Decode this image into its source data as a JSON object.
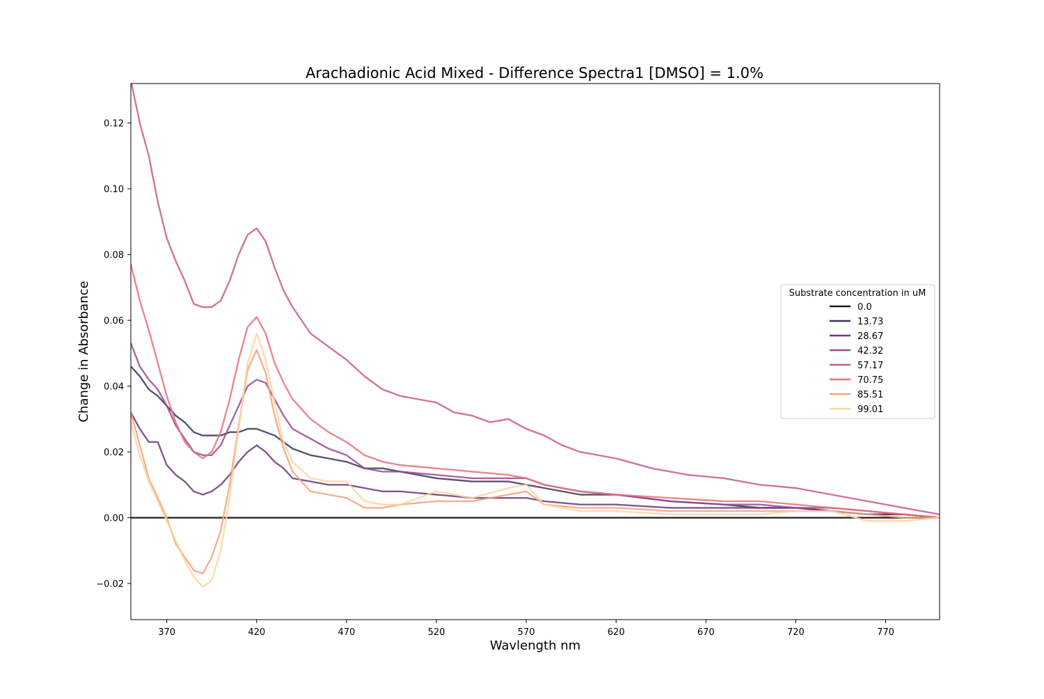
{
  "chart_data": {
    "type": "line",
    "title": "Arachadionic Acid Mixed - Difference Spectra1 [DMSO] = 1.0%",
    "xlabel": "Wavlength nm",
    "ylabel": "Change in Absorbance",
    "xlim": [
      350,
      800
    ],
    "ylim": [
      -0.031,
      0.132
    ],
    "xticks": [
      370,
      420,
      470,
      520,
      570,
      620,
      670,
      720,
      770
    ],
    "yticks": [
      -0.02,
      0.0,
      0.02,
      0.04,
      0.06,
      0.08,
      0.1,
      0.12
    ],
    "ytick_labels": [
      "−0.02",
      "0.00",
      "0.02",
      "0.04",
      "0.06",
      "0.08",
      "0.10",
      "0.12"
    ],
    "grid": false,
    "legend": {
      "title": "Substrate concentration in uM",
      "placement": "center-right"
    },
    "series": [
      {
        "name": "0.0",
        "color": "#1b1b1b",
        "x": [
          350,
          800
        ],
        "values": [
          0.0,
          0.0
        ]
      },
      {
        "name": "13.73",
        "color": "#3b3557",
        "x": [
          350,
          355,
          360,
          365,
          370,
          375,
          380,
          385,
          390,
          395,
          400,
          405,
          410,
          415,
          420,
          425,
          430,
          435,
          440,
          445,
          450,
          460,
          470,
          480,
          490,
          500,
          520,
          540,
          560,
          570,
          580,
          600,
          620,
          650,
          680,
          700,
          720,
          740,
          760,
          780,
          800
        ],
        "values": [
          0.046,
          0.043,
          0.039,
          0.037,
          0.034,
          0.031,
          0.029,
          0.026,
          0.025,
          0.025,
          0.025,
          0.026,
          0.026,
          0.027,
          0.027,
          0.026,
          0.025,
          0.023,
          0.021,
          0.02,
          0.019,
          0.018,
          0.017,
          0.015,
          0.015,
          0.014,
          0.012,
          0.011,
          0.011,
          0.01,
          0.009,
          0.007,
          0.007,
          0.005,
          0.004,
          0.003,
          0.003,
          0.002,
          0.001,
          0.001,
          0.0
        ]
      },
      {
        "name": "28.67",
        "color": "#6b3a7a",
        "x": [
          350,
          355,
          360,
          365,
          370,
          375,
          380,
          385,
          390,
          395,
          400,
          405,
          410,
          415,
          420,
          425,
          430,
          435,
          440,
          450,
          460,
          470,
          480,
          490,
          500,
          520,
          540,
          560,
          570,
          580,
          600,
          620,
          650,
          680,
          700,
          720,
          740,
          760,
          780,
          800
        ],
        "values": [
          0.032,
          0.027,
          0.023,
          0.023,
          0.016,
          0.013,
          0.011,
          0.008,
          0.007,
          0.008,
          0.01,
          0.013,
          0.017,
          0.02,
          0.022,
          0.02,
          0.017,
          0.015,
          0.012,
          0.011,
          0.01,
          0.01,
          0.009,
          0.008,
          0.008,
          0.007,
          0.006,
          0.006,
          0.006,
          0.005,
          0.004,
          0.004,
          0.003,
          0.003,
          0.003,
          0.003,
          0.002,
          0.001,
          0.001,
          0.0
        ]
      },
      {
        "name": "42.32",
        "color": "#9a4a8f",
        "x": [
          350,
          355,
          360,
          365,
          370,
          375,
          380,
          385,
          390,
          395,
          400,
          405,
          410,
          415,
          420,
          425,
          430,
          435,
          440,
          450,
          460,
          470,
          480,
          490,
          500,
          520,
          540,
          560,
          570,
          580,
          600,
          620,
          650,
          680,
          700,
          720,
          740,
          760,
          780,
          800
        ],
        "values": [
          0.053,
          0.046,
          0.042,
          0.039,
          0.034,
          0.028,
          0.024,
          0.02,
          0.019,
          0.019,
          0.022,
          0.028,
          0.034,
          0.04,
          0.042,
          0.041,
          0.036,
          0.031,
          0.027,
          0.024,
          0.021,
          0.019,
          0.015,
          0.014,
          0.014,
          0.013,
          0.012,
          0.012,
          0.012,
          0.01,
          0.008,
          0.007,
          0.005,
          0.004,
          0.004,
          0.003,
          0.003,
          0.002,
          0.001,
          0.0
        ]
      },
      {
        "name": "57.17",
        "color": "#c65a8d",
        "x": [
          350,
          355,
          360,
          365,
          370,
          375,
          380,
          385,
          390,
          395,
          400,
          405,
          410,
          415,
          420,
          425,
          430,
          435,
          440,
          450,
          460,
          470,
          480,
          490,
          500,
          510,
          520,
          530,
          540,
          550,
          560,
          570,
          580,
          590,
          600,
          620,
          640,
          660,
          680,
          700,
          720,
          740,
          760,
          780,
          800
        ],
        "values": [
          0.133,
          0.12,
          0.11,
          0.096,
          0.085,
          0.078,
          0.072,
          0.065,
          0.064,
          0.064,
          0.066,
          0.072,
          0.08,
          0.086,
          0.088,
          0.084,
          0.076,
          0.069,
          0.064,
          0.056,
          0.052,
          0.048,
          0.043,
          0.039,
          0.037,
          0.036,
          0.035,
          0.032,
          0.031,
          0.029,
          0.03,
          0.027,
          0.025,
          0.022,
          0.02,
          0.018,
          0.015,
          0.013,
          0.012,
          0.01,
          0.009,
          0.007,
          0.005,
          0.003,
          0.001
        ]
      },
      {
        "name": "70.75",
        "color": "#e8707c",
        "x": [
          350,
          355,
          360,
          365,
          370,
          375,
          380,
          385,
          390,
          395,
          400,
          405,
          410,
          415,
          420,
          425,
          430,
          435,
          440,
          450,
          460,
          470,
          480,
          490,
          500,
          520,
          540,
          560,
          570,
          580,
          600,
          620,
          650,
          680,
          700,
          720,
          740,
          760,
          780,
          800
        ],
        "values": [
          0.077,
          0.066,
          0.057,
          0.047,
          0.037,
          0.029,
          0.023,
          0.02,
          0.018,
          0.02,
          0.026,
          0.036,
          0.048,
          0.058,
          0.061,
          0.056,
          0.047,
          0.041,
          0.036,
          0.03,
          0.026,
          0.023,
          0.019,
          0.017,
          0.016,
          0.015,
          0.014,
          0.013,
          0.012,
          0.01,
          0.008,
          0.007,
          0.006,
          0.005,
          0.005,
          0.004,
          0.003,
          0.002,
          0.001,
          0.0
        ]
      },
      {
        "name": "85.51",
        "color": "#f4a17e",
        "x": [
          350,
          355,
          360,
          365,
          370,
          375,
          380,
          385,
          390,
          395,
          400,
          405,
          410,
          415,
          420,
          425,
          430,
          435,
          440,
          450,
          460,
          470,
          480,
          490,
          500,
          520,
          540,
          560,
          570,
          580,
          600,
          620,
          650,
          680,
          700,
          720,
          740,
          760,
          780,
          800
        ],
        "values": [
          0.032,
          0.022,
          0.012,
          0.006,
          0.0,
          -0.008,
          -0.012,
          -0.016,
          -0.017,
          -0.012,
          -0.004,
          0.01,
          0.028,
          0.045,
          0.051,
          0.044,
          0.031,
          0.021,
          0.014,
          0.008,
          0.007,
          0.006,
          0.003,
          0.003,
          0.004,
          0.005,
          0.005,
          0.007,
          0.008,
          0.004,
          0.003,
          0.003,
          0.002,
          0.002,
          0.002,
          0.002,
          0.002,
          0.001,
          0.0,
          0.0
        ]
      },
      {
        "name": "99.01",
        "color": "#fbd3a0",
        "x": [
          350,
          355,
          360,
          365,
          370,
          375,
          380,
          385,
          390,
          395,
          400,
          405,
          410,
          415,
          420,
          425,
          430,
          435,
          440,
          450,
          460,
          470,
          480,
          490,
          500,
          520,
          540,
          560,
          570,
          580,
          600,
          620,
          650,
          680,
          700,
          720,
          740,
          760,
          780,
          800
        ],
        "values": [
          0.029,
          0.019,
          0.011,
          0.005,
          -0.001,
          -0.007,
          -0.013,
          -0.018,
          -0.021,
          -0.019,
          -0.01,
          0.006,
          0.027,
          0.047,
          0.056,
          0.048,
          0.035,
          0.023,
          0.017,
          0.012,
          0.011,
          0.011,
          0.005,
          0.004,
          0.004,
          0.008,
          0.006,
          0.009,
          0.01,
          0.004,
          0.002,
          0.002,
          0.001,
          0.001,
          0.001,
          0.002,
          0.002,
          -0.001,
          -0.001,
          0.0
        ]
      }
    ]
  }
}
